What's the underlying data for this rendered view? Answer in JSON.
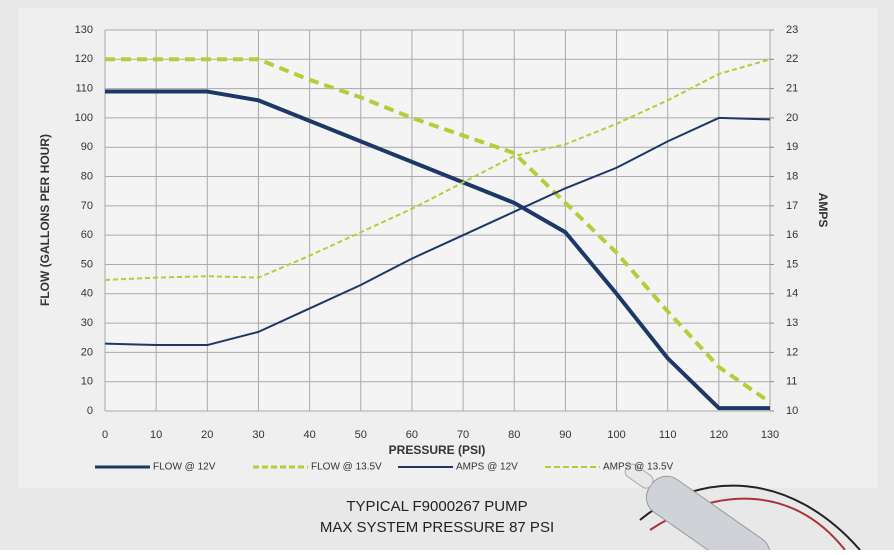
{
  "chart_data": {
    "type": "line",
    "title": "TYPICAL F9000267 PUMP",
    "subtitle": "MAX SYSTEM PRESSURE 87 PSI",
    "xlabel": "PRESSURE (PSI)",
    "ylabel": "FLOW (GALLONS PER HOUR)",
    "y2label": "AMPS",
    "x": [
      0,
      10,
      20,
      30,
      40,
      50,
      60,
      70,
      80,
      90,
      100,
      110,
      120,
      130
    ],
    "xlim": [
      0,
      130
    ],
    "xticks": [
      0,
      10,
      20,
      30,
      40,
      50,
      60,
      70,
      80,
      90,
      100,
      110,
      120,
      130
    ],
    "ylim": [
      0,
      130
    ],
    "yticks": [
      0,
      10,
      20,
      30,
      40,
      50,
      60,
      70,
      80,
      90,
      100,
      110,
      120,
      130
    ],
    "y2lim": [
      10,
      23
    ],
    "y2ticks": [
      10,
      11,
      12,
      13,
      14,
      15,
      16,
      17,
      18,
      19,
      20,
      21,
      22,
      23
    ],
    "grid": true,
    "legend": "bottom",
    "series": [
      {
        "name": "FLOW @ 12V",
        "color": "#1c3867",
        "width": 4,
        "dashed": false,
        "values": [
          109,
          109,
          109,
          106,
          99,
          92,
          85,
          78,
          71,
          61,
          40,
          18,
          1,
          1
        ]
      },
      {
        "name": "FLOW @ 13.5V",
        "color": "#b8cb3a",
        "width": 4,
        "dashed": true,
        "values": [
          120,
          120,
          120,
          120,
          113,
          107,
          100,
          94,
          88,
          71,
          54,
          34,
          15,
          3
        ]
      },
      {
        "name": "AMPS @ 12V",
        "color": "#1c3867",
        "width": 2,
        "dashed": false,
        "axis": "y2",
        "values": [
          12.3,
          12.25,
          12.25,
          12.7,
          13.5,
          14.3,
          15.2,
          16.0,
          16.8,
          17.6,
          18.3,
          19.2,
          20.0,
          19.95
        ]
      },
      {
        "name": "AMPS @ 13.5V",
        "color": "#b8cb3a",
        "width": 2,
        "dashed": true,
        "axis": "y2",
        "values": [
          14.47,
          14.55,
          14.6,
          14.55,
          15.3,
          16.1,
          16.9,
          17.8,
          18.7,
          19.1,
          19.8,
          20.6,
          21.5,
          22.0
        ]
      }
    ]
  }
}
